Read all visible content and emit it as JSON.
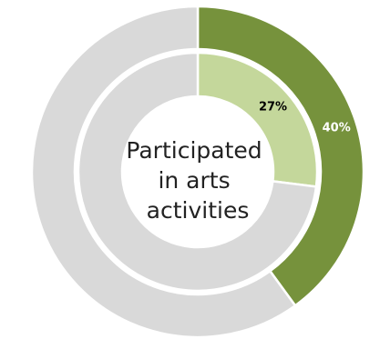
{
  "chart_data": {
    "type": "pie",
    "variant": "nested-doughnut",
    "center_label_lines": [
      "Participated",
      "in arts",
      "activities"
    ],
    "series": [
      {
        "ring": "outer",
        "values": [
          40,
          60
        ],
        "colors": [
          "#76923c",
          "#d9d9d9"
        ],
        "data_labels": [
          "40%",
          ""
        ],
        "label_colors": [
          "#ffffff",
          "#000000"
        ]
      },
      {
        "ring": "inner",
        "values": [
          27,
          73
        ],
        "colors": [
          "#c4d79b",
          "#d9d9d9"
        ],
        "data_labels": [
          "27%",
          ""
        ],
        "label_colors": [
          "#000000",
          "#000000"
        ]
      }
    ],
    "separator_color": "#ffffff",
    "legend": "none"
  }
}
